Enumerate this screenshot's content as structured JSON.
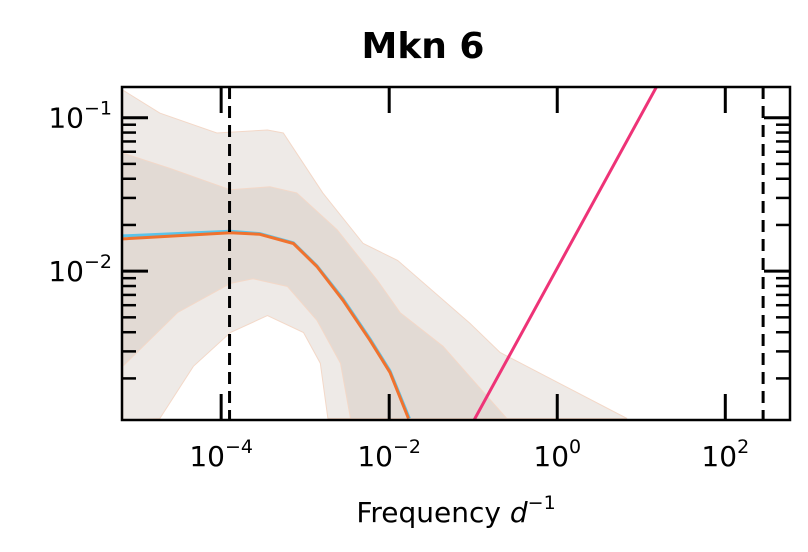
{
  "chart_data": {
    "type": "line",
    "title": "Mkn 6",
    "xlabel": "Frequency",
    "xlabel_unit": "d",
    "xlabel_unit_exp": "−1",
    "ylabel": "",
    "xscale": "log",
    "yscale": "log",
    "xlim_log10": [
      -5.18,
      2.77
    ],
    "ylim_log10": [
      -2.97,
      -0.8
    ],
    "x_ticks": [
      {
        "base": "10",
        "exp": "−4",
        "log10": -4
      },
      {
        "base": "10",
        "exp": "−2",
        "log10": -2
      },
      {
        "base": "10",
        "exp": "0",
        "log10": 0
      },
      {
        "base": "10",
        "exp": "2",
        "log10": 2
      }
    ],
    "y_ticks": [
      {
        "base": "10",
        "exp": "−1",
        "log10": -1
      },
      {
        "base": "10",
        "exp": "−2",
        "log10": -2
      }
    ],
    "vlines_log10": [
      -3.9,
      2.45
    ],
    "series": [
      {
        "name": "median-blue",
        "color": "#5bc4ea",
        "points_log10": [
          [
            -5.17,
            -1.77
          ],
          [
            -3.89,
            -1.74
          ],
          [
            -3.54,
            -1.755
          ],
          [
            -3.14,
            -1.815
          ],
          [
            -2.86,
            -1.965
          ],
          [
            -2.55,
            -2.18
          ],
          [
            -2.23,
            -2.44
          ],
          [
            -1.99,
            -2.65
          ],
          [
            -1.76,
            -2.96
          ]
        ]
      },
      {
        "name": "median-orange",
        "color": "#f0722e",
        "points_log10": [
          [
            -5.17,
            -1.79
          ],
          [
            -3.89,
            -1.75
          ],
          [
            -3.54,
            -1.76
          ],
          [
            -3.14,
            -1.82
          ],
          [
            -2.86,
            -1.97
          ],
          [
            -2.55,
            -2.19
          ],
          [
            -2.23,
            -2.45
          ],
          [
            -1.99,
            -2.66
          ],
          [
            -1.77,
            -2.96
          ]
        ]
      },
      {
        "name": "power-law-line",
        "color": "#ee3377",
        "points_log10": [
          [
            -0.99,
            -2.97
          ],
          [
            1.18,
            -0.8
          ]
        ]
      }
    ],
    "bands": [
      {
        "name": "outer-band",
        "color": "#eeeae7",
        "upper_log10": [
          [
            -5.17,
            -0.82
          ],
          [
            -4.73,
            -0.97
          ],
          [
            -4.05,
            -1.1
          ],
          [
            -3.45,
            -1.08
          ],
          [
            -3.26,
            -1.1
          ],
          [
            -2.79,
            -1.49
          ],
          [
            -2.31,
            -1.82
          ],
          [
            -1.9,
            -1.93
          ],
          [
            -1.04,
            -2.34
          ],
          [
            -0.68,
            -2.53
          ],
          [
            0.83,
            -2.96
          ]
        ],
        "lower_log10": [
          [
            -5.17,
            -2.97
          ],
          [
            -4.73,
            -2.96
          ],
          [
            -4.33,
            -2.62
          ],
          [
            -3.89,
            -2.4
          ],
          [
            -3.45,
            -2.29
          ],
          [
            -3.02,
            -2.4
          ],
          [
            -2.82,
            -2.6
          ],
          [
            -2.73,
            -2.96
          ]
        ]
      },
      {
        "name": "inner-band",
        "color": "#e2dad4",
        "upper_log10": [
          [
            -5.17,
            -1.23
          ],
          [
            -4.61,
            -1.33
          ],
          [
            -3.89,
            -1.47
          ],
          [
            -3.42,
            -1.45
          ],
          [
            -3.1,
            -1.49
          ],
          [
            -2.62,
            -1.73
          ],
          [
            -2.14,
            -2.06
          ],
          [
            -1.87,
            -2.27
          ],
          [
            -1.36,
            -2.49
          ],
          [
            -0.6,
            -2.96
          ]
        ],
        "lower_log10": [
          [
            -5.17,
            -2.62
          ],
          [
            -4.52,
            -2.27
          ],
          [
            -3.89,
            -2.08
          ],
          [
            -3.62,
            -2.05
          ],
          [
            -3.21,
            -2.1
          ],
          [
            -2.86,
            -2.32
          ],
          [
            -2.58,
            -2.6
          ],
          [
            -2.46,
            -2.96
          ]
        ]
      }
    ]
  }
}
